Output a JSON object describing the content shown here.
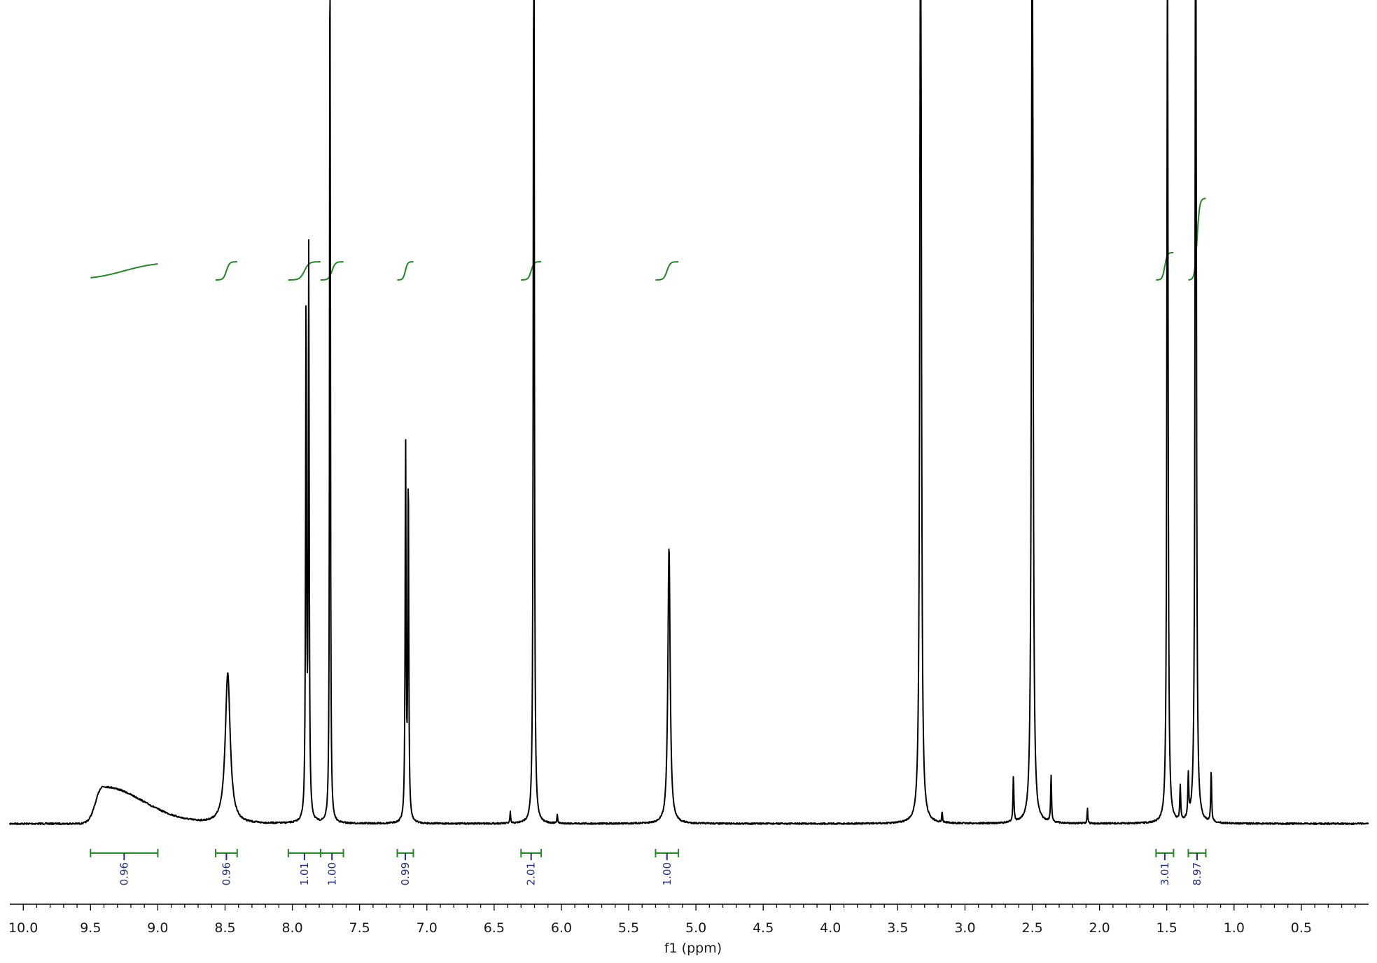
{
  "chart_data": {
    "type": "line",
    "title": "",
    "xlabel": "f1 (ppm)",
    "ylabel": "",
    "xlim": [
      10.1,
      0.0
    ],
    "x_reversed": true,
    "xticks": [
      "10.0",
      "9.5",
      "9.0",
      "8.5",
      "8.0",
      "7.5",
      "7.0",
      "6.5",
      "6.0",
      "5.5",
      "5.0",
      "4.5",
      "4.0",
      "3.5",
      "3.0",
      "2.5",
      "2.0",
      "1.5",
      "1.0",
      "0.5"
    ],
    "grid": false,
    "legend": "none",
    "colors": {
      "spectrum": "#000000",
      "integral": "#1f8a1f",
      "integral_label": "#1f2f8f"
    },
    "peaks": [
      {
        "shift": 9.41,
        "height": 0.048,
        "width": 0.05,
        "shape": "broad"
      },
      {
        "shift": 8.48,
        "height": 0.195,
        "width": 0.022
      },
      {
        "shift": 7.898,
        "height": 0.68,
        "width": 0.004
      },
      {
        "shift": 7.878,
        "height": 0.73,
        "width": 0.004
      },
      {
        "shift": 7.72,
        "height": 1.5,
        "width": 0.003
      },
      {
        "shift": 7.158,
        "height": 0.49,
        "width": 0.004
      },
      {
        "shift": 7.138,
        "height": 0.45,
        "width": 0.004
      },
      {
        "shift": 6.205,
        "height": 1.5,
        "width": 0.004
      },
      {
        "shift": 5.2,
        "height": 0.36,
        "width": 0.01
      },
      {
        "shift": 3.33,
        "height": 1.5,
        "width": 0.006
      },
      {
        "shift": 2.5,
        "height": 1.5,
        "width": 0.006
      },
      {
        "shift": 1.495,
        "height": 1.2,
        "width": 0.005
      },
      {
        "shift": 1.285,
        "height": 1.5,
        "width": 0.005
      },
      {
        "shift": 2.64,
        "height": 0.06,
        "width": 0.004
      },
      {
        "shift": 2.36,
        "height": 0.06,
        "width": 0.004
      },
      {
        "shift": 1.4,
        "height": 0.045,
        "width": 0.004
      },
      {
        "shift": 1.34,
        "height": 0.055,
        "width": 0.004
      },
      {
        "shift": 1.17,
        "height": 0.065,
        "width": 0.004
      },
      {
        "shift": 2.09,
        "height": 0.02,
        "width": 0.003
      },
      {
        "shift": 6.38,
        "height": 0.015,
        "width": 0.003
      },
      {
        "shift": 6.03,
        "height": 0.012,
        "width": 0.003
      },
      {
        "shift": 3.17,
        "height": 0.015,
        "width": 0.003
      }
    ],
    "integrals": [
      {
        "from": 9.5,
        "to": 9.0,
        "value": "0.96"
      },
      {
        "from": 8.57,
        "to": 8.41,
        "value": "0.96"
      },
      {
        "from": 8.03,
        "to": 7.79,
        "value": "1.01"
      },
      {
        "from": 7.79,
        "to": 7.62,
        "value": "1.00"
      },
      {
        "from": 7.22,
        "to": 7.1,
        "value": "0.99"
      },
      {
        "from": 6.3,
        "to": 6.15,
        "value": "2.01"
      },
      {
        "from": 5.3,
        "to": 5.13,
        "value": "1.00"
      },
      {
        "from": 1.58,
        "to": 1.45,
        "value": "3.01"
      },
      {
        "from": 1.34,
        "to": 1.21,
        "value": "8.97"
      }
    ]
  }
}
